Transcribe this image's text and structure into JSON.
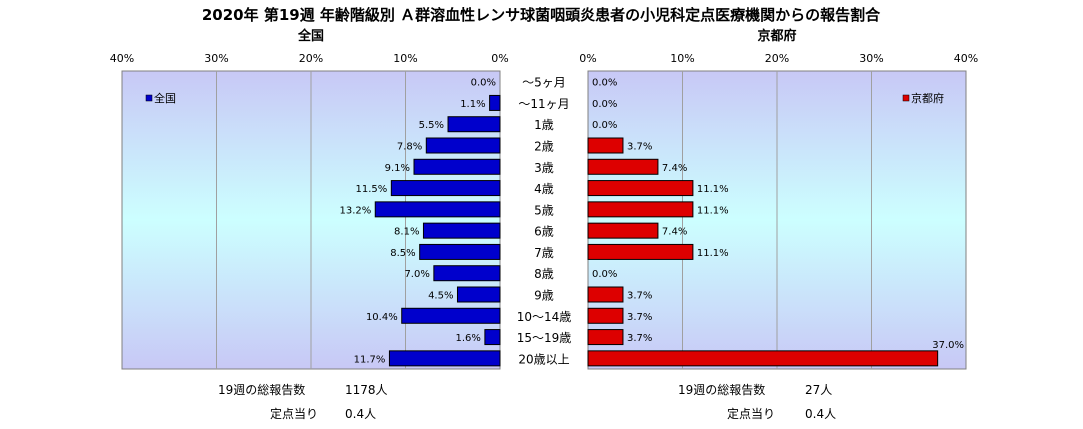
{
  "chart_data": {
    "type": "bar",
    "title": "2020年 第19週 年齢階級別 Ａ群溶血性レンサ球菌咽頭炎患者の小児科定点医療機関からの報告割合",
    "categories": [
      "～5ヶ月",
      "～11ヶ月",
      "1歳",
      "2歳",
      "3歳",
      "4歳",
      "5歳",
      "6歳",
      "7歳",
      "8歳",
      "9歳",
      "10～14歳",
      "15～19歳",
      "20歳以上"
    ],
    "xlim": [
      0,
      40
    ],
    "ticks": [
      "0%",
      "10%",
      "20%",
      "30%",
      "40%"
    ],
    "grid": true,
    "panels": [
      {
        "subtitle": "全国",
        "legend": "全国",
        "legend_position": "top-left",
        "color": "#0000cc",
        "values": [
          0.0,
          1.1,
          5.5,
          7.8,
          9.1,
          11.5,
          13.2,
          8.1,
          8.5,
          7.0,
          4.5,
          10.4,
          1.6,
          11.7
        ],
        "labels": [
          "0.0%",
          "1.1%",
          "5.5%",
          "7.8%",
          "9.1%",
          "11.5%",
          "13.2%",
          "8.1%",
          "8.5%",
          "7.0%",
          "4.5%",
          "10.4%",
          "1.6%",
          "11.7%"
        ]
      },
      {
        "subtitle": "京都府",
        "legend": "京都府",
        "legend_position": "top-right",
        "color": "#dd0000",
        "values": [
          0.0,
          0.0,
          0.0,
          3.7,
          7.4,
          11.1,
          11.1,
          7.4,
          11.1,
          0.0,
          3.7,
          3.7,
          3.7,
          37.0
        ],
        "labels": [
          "0.0%",
          "0.0%",
          "0.0%",
          "3.7%",
          "7.4%",
          "11.1%",
          "11.1%",
          "7.4%",
          "11.1%",
          "0.0%",
          "3.7%",
          "3.7%",
          "3.7%",
          "37.0%"
        ]
      }
    ]
  },
  "footer": {
    "left": {
      "total_label": "19週の総報告数",
      "total_value": "1178人",
      "per_label": "定点当り",
      "per_value": "0.4人"
    },
    "right": {
      "total_label": "19週の総報告数",
      "total_value": "27人",
      "per_label": "定点当り",
      "per_value": "0.4人"
    }
  }
}
